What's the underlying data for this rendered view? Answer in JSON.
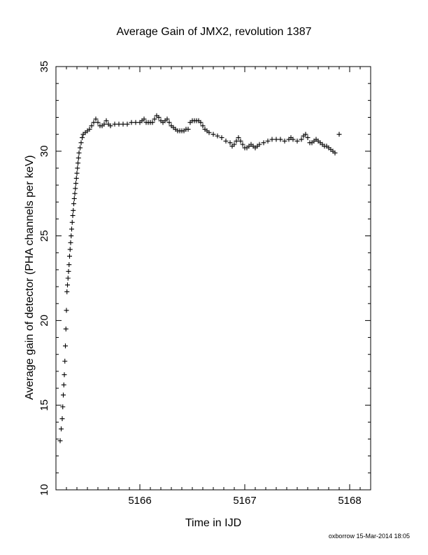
{
  "chart_data": {
    "type": "scatter",
    "title": "Average Gain of JMX2, revolution 1387",
    "xlabel": "Time in IJD",
    "ylabel": "Average gain of detector (PHA channels per keV)",
    "xlim": [
      5165.2,
      5168.2
    ],
    "ylim": [
      10,
      35
    ],
    "xticks": [
      5166,
      5167,
      5168
    ],
    "yticks": [
      10,
      15,
      20,
      25,
      30,
      35
    ],
    "grid": false,
    "marker": "plus",
    "series": [
      {
        "name": "",
        "points": [
          [
            5165.24,
            12.9
          ],
          [
            5165.25,
            13.6
          ],
          [
            5165.26,
            14.2
          ],
          [
            5165.265,
            14.9
          ],
          [
            5165.27,
            15.6
          ],
          [
            5165.275,
            16.2
          ],
          [
            5165.28,
            16.8
          ],
          [
            5165.285,
            17.6
          ],
          [
            5165.29,
            18.5
          ],
          [
            5165.295,
            19.5
          ],
          [
            5165.3,
            20.6
          ],
          [
            5165.305,
            21.7
          ],
          [
            5165.31,
            22.1
          ],
          [
            5165.315,
            22.5
          ],
          [
            5165.32,
            22.9
          ],
          [
            5165.325,
            23.3
          ],
          [
            5165.33,
            23.8
          ],
          [
            5165.335,
            24.2
          ],
          [
            5165.34,
            24.6
          ],
          [
            5165.345,
            25.0
          ],
          [
            5165.35,
            25.4
          ],
          [
            5165.355,
            25.8
          ],
          [
            5165.36,
            26.2
          ],
          [
            5165.365,
            26.5
          ],
          [
            5165.37,
            26.9
          ],
          [
            5165.375,
            27.2
          ],
          [
            5165.38,
            27.5
          ],
          [
            5165.385,
            27.8
          ],
          [
            5165.39,
            28.1
          ],
          [
            5165.395,
            28.4
          ],
          [
            5165.4,
            28.7
          ],
          [
            5165.405,
            29.0
          ],
          [
            5165.41,
            29.3
          ],
          [
            5165.415,
            29.6
          ],
          [
            5165.42,
            29.9
          ],
          [
            5165.43,
            30.2
          ],
          [
            5165.44,
            30.5
          ],
          [
            5165.45,
            30.8
          ],
          [
            5165.46,
            31.0
          ],
          [
            5165.48,
            31.1
          ],
          [
            5165.5,
            31.2
          ],
          [
            5165.52,
            31.3
          ],
          [
            5165.54,
            31.5
          ],
          [
            5165.56,
            31.7
          ],
          [
            5165.58,
            31.9
          ],
          [
            5165.6,
            31.7
          ],
          [
            5165.62,
            31.5
          ],
          [
            5165.64,
            31.5
          ],
          [
            5165.66,
            31.6
          ],
          [
            5165.68,
            31.8
          ],
          [
            5165.7,
            31.6
          ],
          [
            5165.72,
            31.5
          ],
          [
            5165.76,
            31.6
          ],
          [
            5165.8,
            31.6
          ],
          [
            5165.84,
            31.6
          ],
          [
            5165.88,
            31.6
          ],
          [
            5165.92,
            31.7
          ],
          [
            5165.96,
            31.7
          ],
          [
            5166.0,
            31.7
          ],
          [
            5166.02,
            31.8
          ],
          [
            5166.04,
            31.9
          ],
          [
            5166.06,
            31.7
          ],
          [
            5166.08,
            31.7
          ],
          [
            5166.1,
            31.7
          ],
          [
            5166.12,
            31.7
          ],
          [
            5166.14,
            31.9
          ],
          [
            5166.16,
            32.1
          ],
          [
            5166.18,
            32.0
          ],
          [
            5166.2,
            31.8
          ],
          [
            5166.22,
            31.7
          ],
          [
            5166.24,
            31.8
          ],
          [
            5166.26,
            31.9
          ],
          [
            5166.28,
            31.7
          ],
          [
            5166.3,
            31.5
          ],
          [
            5166.32,
            31.4
          ],
          [
            5166.34,
            31.3
          ],
          [
            5166.36,
            31.2
          ],
          [
            5166.38,
            31.2
          ],
          [
            5166.4,
            31.2
          ],
          [
            5166.42,
            31.2
          ],
          [
            5166.44,
            31.3
          ],
          [
            5166.46,
            31.3
          ],
          [
            5166.48,
            31.7
          ],
          [
            5166.5,
            31.8
          ],
          [
            5166.52,
            31.8
          ],
          [
            5166.54,
            31.8
          ],
          [
            5166.56,
            31.8
          ],
          [
            5166.58,
            31.7
          ],
          [
            5166.6,
            31.5
          ],
          [
            5166.62,
            31.3
          ],
          [
            5166.64,
            31.2
          ],
          [
            5166.66,
            31.1
          ],
          [
            5166.7,
            31.0
          ],
          [
            5166.74,
            30.9
          ],
          [
            5166.78,
            30.8
          ],
          [
            5166.82,
            30.6
          ],
          [
            5166.86,
            30.5
          ],
          [
            5166.88,
            30.3
          ],
          [
            5166.9,
            30.4
          ],
          [
            5166.92,
            30.6
          ],
          [
            5166.94,
            30.8
          ],
          [
            5166.96,
            30.6
          ],
          [
            5166.98,
            30.4
          ],
          [
            5167.0,
            30.2
          ],
          [
            5167.02,
            30.2
          ],
          [
            5167.04,
            30.3
          ],
          [
            5167.06,
            30.4
          ],
          [
            5167.08,
            30.3
          ],
          [
            5167.1,
            30.2
          ],
          [
            5167.12,
            30.3
          ],
          [
            5167.14,
            30.4
          ],
          [
            5167.18,
            30.5
          ],
          [
            5167.22,
            30.6
          ],
          [
            5167.26,
            30.7
          ],
          [
            5167.3,
            30.7
          ],
          [
            5167.34,
            30.7
          ],
          [
            5167.38,
            30.6
          ],
          [
            5167.42,
            30.7
          ],
          [
            5167.44,
            30.8
          ],
          [
            5167.46,
            30.7
          ],
          [
            5167.5,
            30.6
          ],
          [
            5167.54,
            30.7
          ],
          [
            5167.56,
            30.9
          ],
          [
            5167.58,
            31.0
          ],
          [
            5167.6,
            30.8
          ],
          [
            5167.62,
            30.5
          ],
          [
            5167.64,
            30.5
          ],
          [
            5167.66,
            30.6
          ],
          [
            5167.68,
            30.7
          ],
          [
            5167.7,
            30.6
          ],
          [
            5167.72,
            30.5
          ],
          [
            5167.74,
            30.4
          ],
          [
            5167.76,
            30.3
          ],
          [
            5167.78,
            30.3
          ],
          [
            5167.8,
            30.2
          ],
          [
            5167.82,
            30.1
          ],
          [
            5167.84,
            30.0
          ],
          [
            5167.86,
            29.9
          ],
          [
            5167.9,
            31.0
          ]
        ]
      }
    ]
  },
  "footer": "oxborrow 15-Mar-2014 18:05"
}
